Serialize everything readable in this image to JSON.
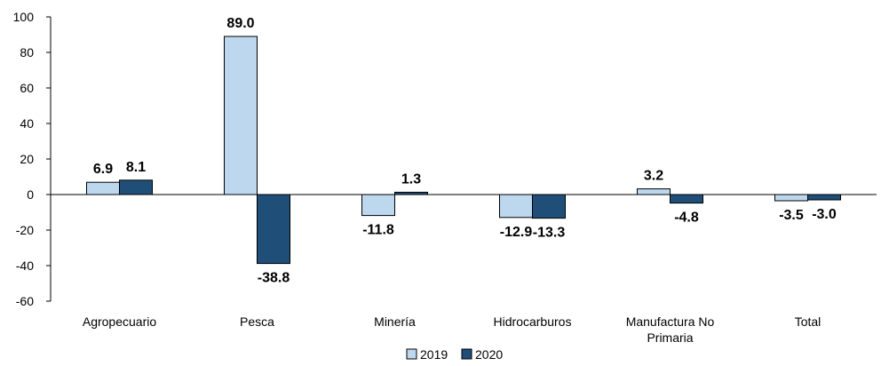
{
  "chart_data": {
    "type": "bar",
    "categories": [
      "Agropecuario",
      "Pesca",
      "Minería",
      "Hidrocarburos",
      "Manufactura No Primaria",
      "Total"
    ],
    "series": [
      {
        "name": "2019",
        "values": [
          6.9,
          89.0,
          -11.8,
          -12.9,
          3.2,
          -3.5
        ],
        "color": "#bdd7ee"
      },
      {
        "name": "2020",
        "values": [
          8.1,
          -38.8,
          1.3,
          -13.3,
          -4.8,
          -3.0
        ],
        "color": "#1f4e79"
      }
    ],
    "data_labels": [
      [
        "6.9",
        "89.0",
        "-11.8",
        "-12.9",
        "3.2",
        "-3.5"
      ],
      [
        "8.1",
        "-38.8",
        "1.3",
        "-13.3",
        "-4.8",
        "-3.0"
      ]
    ],
    "y_ticks": [
      "100",
      "80",
      "60",
      "40",
      "20",
      "0",
      "-20",
      "-40",
      "-60"
    ],
    "ylim": [
      -60,
      100
    ],
    "legend_position": "bottom",
    "grid": false
  }
}
